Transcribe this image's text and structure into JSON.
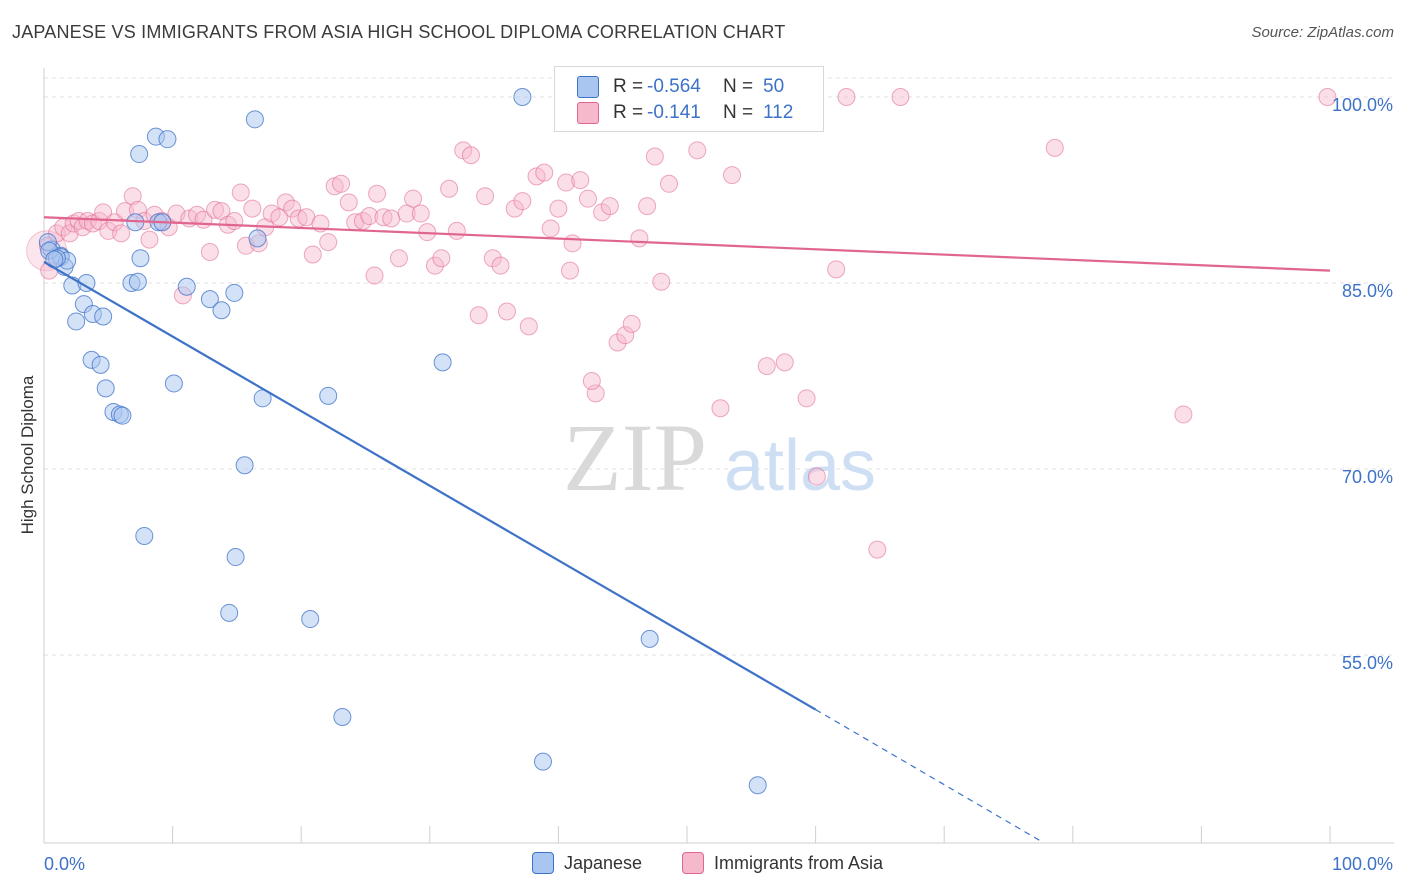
{
  "title": "JAPANESE VS IMMIGRANTS FROM ASIA HIGH SCHOOL DIPLOMA CORRELATION CHART",
  "source": "Source: ZipAtlas.com",
  "colors": {
    "blue": "#3d72c8",
    "blue_fill": "#a9c6f0",
    "pink": "#e06690",
    "pink_fill": "#f6b8cb",
    "grid": "#e2e2e2",
    "axis_text": "#3d72c8"
  },
  "legend_top": {
    "rows": [
      {
        "r_label": "R = ",
        "r_value": "-0.564",
        "n_label": "N = ",
        "n_value": "50"
      },
      {
        "r_label": "R = ",
        "r_value": "-0.141",
        "n_label": "N = ",
        "n_value": "112"
      }
    ]
  },
  "legend_bottom": {
    "items": [
      "Japanese",
      "Immigrants from Asia"
    ]
  },
  "watermark": {
    "zip": "ZIP",
    "atlas": "atlas"
  },
  "chart_data": {
    "type": "scatter",
    "title": "JAPANESE VS IMMIGRANTS FROM ASIA HIGH SCHOOL DIPLOMA CORRELATION CHART",
    "xlabel": "",
    "ylabel": "High School Diploma",
    "xlim": [
      0,
      100
    ],
    "ylim": [
      40,
      102.5
    ],
    "x_tick_labels": [
      "0.0%",
      "100.0%"
    ],
    "y_ticks": [
      55,
      70,
      85,
      100
    ],
    "y_tick_labels": [
      "55.0%",
      "70.0%",
      "85.0%",
      "100.0%"
    ],
    "grid": true,
    "legend_position": "bottom",
    "series": [
      {
        "name": "Japanese",
        "r": -0.564,
        "n": 50,
        "trend": {
          "x0": 0,
          "y0": 86.7,
          "x1": 60,
          "y1": 50.6,
          "dashed_to_x": 77.5,
          "dashed_to_y": 40.0
        },
        "points": [
          [
            0.6,
            87.7
          ],
          [
            1.3,
            87.2
          ],
          [
            1.3,
            87.1
          ],
          [
            1.6,
            86.3
          ],
          [
            1.8,
            86.8
          ],
          [
            2.2,
            84.8
          ],
          [
            3.3,
            85.0
          ],
          [
            2.5,
            81.9
          ],
          [
            3.1,
            83.3
          ],
          [
            3.8,
            82.5
          ],
          [
            4.6,
            82.3
          ],
          [
            3.7,
            78.8
          ],
          [
            4.4,
            78.4
          ],
          [
            4.8,
            76.5
          ],
          [
            5.4,
            74.6
          ],
          [
            5.9,
            74.4
          ],
          [
            6.1,
            74.3
          ],
          [
            7.1,
            89.9
          ],
          [
            6.8,
            85.0
          ],
          [
            7.3,
            85.1
          ],
          [
            7.4,
            95.4
          ],
          [
            7.5,
            87.0
          ],
          [
            8.7,
            96.8
          ],
          [
            9.6,
            96.6
          ],
          [
            8.9,
            89.9
          ],
          [
            9.2,
            89.9
          ],
          [
            10.1,
            76.9
          ],
          [
            11.1,
            84.7
          ],
          [
            12.9,
            83.7
          ],
          [
            13.8,
            82.8
          ],
          [
            14.8,
            84.2
          ],
          [
            15.6,
            70.3
          ],
          [
            16.4,
            98.2
          ],
          [
            16.6,
            88.6
          ],
          [
            17.0,
            75.7
          ],
          [
            7.8,
            64.6
          ],
          [
            14.4,
            58.4
          ],
          [
            14.9,
            62.9
          ],
          [
            20.7,
            57.9
          ],
          [
            22.1,
            75.9
          ],
          [
            23.2,
            50.0
          ],
          [
            31.0,
            78.6
          ],
          [
            37.2,
            100.0
          ],
          [
            38.8,
            46.4
          ],
          [
            47.1,
            56.3
          ],
          [
            55.5,
            44.5
          ],
          [
            0.3,
            88.3
          ],
          [
            0.4,
            87.6
          ],
          [
            1.0,
            87.0
          ],
          [
            0.8,
            86.9
          ]
        ]
      },
      {
        "name": "Immigrants from Asia",
        "r": -0.141,
        "n": 112,
        "trend": {
          "x0": 0,
          "y0": 90.3,
          "x1": 100,
          "y1": 86.0
        },
        "points": [
          [
            0.3,
            88.0
          ],
          [
            0.4,
            86.0
          ],
          [
            1.0,
            89.0
          ],
          [
            1.5,
            89.5
          ],
          [
            2.0,
            89.0
          ],
          [
            2.3,
            89.8
          ],
          [
            2.7,
            90.0
          ],
          [
            3.0,
            89.5
          ],
          [
            3.4,
            90.0
          ],
          [
            3.8,
            89.8
          ],
          [
            4.3,
            90.0
          ],
          [
            4.6,
            90.7
          ],
          [
            5.0,
            89.2
          ],
          [
            5.5,
            89.9
          ],
          [
            6.0,
            89.0
          ],
          [
            6.3,
            90.8
          ],
          [
            6.9,
            92.0
          ],
          [
            7.3,
            90.9
          ],
          [
            7.8,
            90.0
          ],
          [
            8.2,
            88.5
          ],
          [
            8.6,
            90.5
          ],
          [
            9.2,
            90.0
          ],
          [
            9.7,
            89.5
          ],
          [
            10.3,
            90.6
          ],
          [
            10.8,
            84.0
          ],
          [
            11.3,
            90.2
          ],
          [
            11.9,
            90.5
          ],
          [
            12.4,
            90.1
          ],
          [
            12.9,
            87.5
          ],
          [
            13.3,
            90.9
          ],
          [
            13.8,
            90.8
          ],
          [
            14.3,
            89.7
          ],
          [
            14.8,
            90.0
          ],
          [
            15.3,
            92.3
          ],
          [
            15.7,
            88.0
          ],
          [
            16.2,
            91.0
          ],
          [
            16.7,
            88.2
          ],
          [
            17.2,
            89.5
          ],
          [
            17.7,
            90.6
          ],
          [
            18.3,
            90.3
          ],
          [
            18.8,
            91.5
          ],
          [
            19.3,
            91.0
          ],
          [
            19.8,
            90.2
          ],
          [
            20.4,
            90.3
          ],
          [
            20.9,
            87.3
          ],
          [
            21.5,
            89.8
          ],
          [
            22.1,
            88.3
          ],
          [
            22.6,
            92.8
          ],
          [
            23.1,
            93.0
          ],
          [
            23.7,
            91.5
          ],
          [
            24.2,
            89.9
          ],
          [
            24.8,
            90.0
          ],
          [
            25.3,
            90.4
          ],
          [
            25.9,
            92.2
          ],
          [
            26.4,
            90.3
          ],
          [
            27.0,
            90.2
          ],
          [
            27.6,
            87.0
          ],
          [
            28.2,
            90.6
          ],
          [
            28.7,
            91.8
          ],
          [
            29.3,
            90.6
          ],
          [
            29.8,
            89.1
          ],
          [
            30.4,
            86.4
          ],
          [
            30.9,
            87.0
          ],
          [
            31.5,
            92.6
          ],
          [
            32.1,
            89.2
          ],
          [
            32.6,
            95.7
          ],
          [
            33.2,
            95.3
          ],
          [
            33.8,
            82.4
          ],
          [
            34.3,
            92.0
          ],
          [
            34.9,
            87.0
          ],
          [
            35.5,
            86.4
          ],
          [
            36.0,
            82.7
          ],
          [
            36.6,
            91.0
          ],
          [
            37.2,
            91.6
          ],
          [
            37.7,
            81.5
          ],
          [
            38.3,
            93.6
          ],
          [
            38.9,
            93.9
          ],
          [
            39.4,
            89.4
          ],
          [
            40.0,
            91.0
          ],
          [
            40.6,
            93.1
          ],
          [
            41.1,
            88.2
          ],
          [
            41.7,
            93.3
          ],
          [
            42.3,
            91.8
          ],
          [
            42.9,
            76.1
          ],
          [
            43.4,
            90.7
          ],
          [
            44.0,
            91.2
          ],
          [
            44.6,
            80.2
          ],
          [
            45.2,
            80.8
          ],
          [
            45.7,
            81.7
          ],
          [
            46.3,
            88.6
          ],
          [
            46.9,
            91.2
          ],
          [
            47.5,
            95.2
          ],
          [
            48.0,
            85.1
          ],
          [
            48.6,
            93.0
          ],
          [
            50.8,
            95.7
          ],
          [
            52.6,
            74.9
          ],
          [
            53.5,
            93.7
          ],
          [
            54.3,
            98.3
          ],
          [
            56.2,
            78.3
          ],
          [
            57.6,
            78.6
          ],
          [
            59.3,
            75.7
          ],
          [
            60.1,
            69.4
          ],
          [
            61.6,
            86.1
          ],
          [
            62.4,
            100.0
          ],
          [
            64.8,
            63.5
          ],
          [
            66.6,
            100.0
          ],
          [
            78.6,
            95.9
          ],
          [
            88.6,
            74.4
          ],
          [
            99.8,
            100.0
          ],
          [
            25.7,
            85.6
          ],
          [
            40.9,
            86.0
          ],
          [
            42.6,
            77.1
          ]
        ]
      }
    ]
  }
}
